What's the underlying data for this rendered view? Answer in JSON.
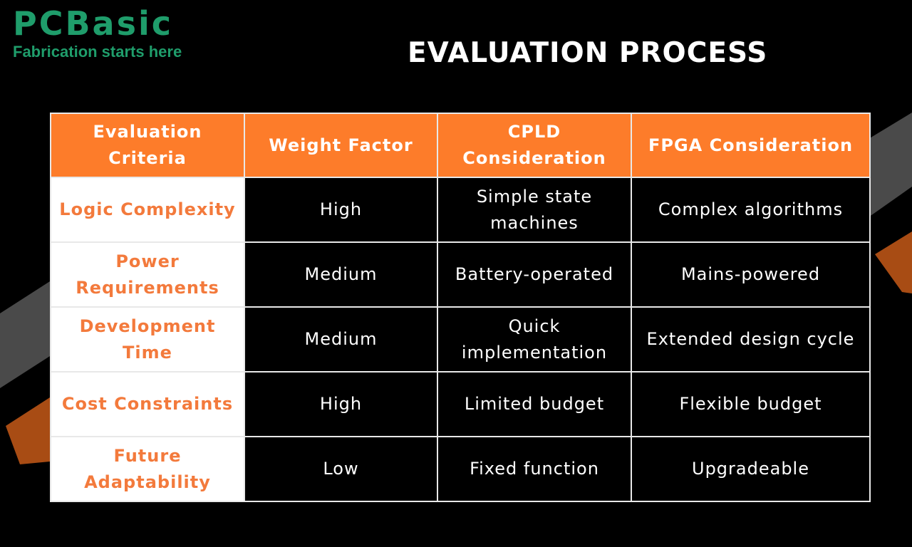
{
  "brand": {
    "name": "PCBasic",
    "tagline": "Fabrication starts here",
    "color": "#1f9d6b"
  },
  "title": "EVALUATION PROCESS",
  "colors": {
    "accent": "#fd7c2a",
    "criteria_text": "#f37a3c",
    "stripe_gray": "#4a4a4a",
    "stripe_orange": "#a84c14"
  },
  "table": {
    "headers": [
      "Evaluation Criteria",
      "Weight Factor",
      "CPLD Consideration",
      "FPGA Consideration"
    ],
    "rows": [
      {
        "criteria": "Logic Complexity",
        "weight": "High",
        "cpld": "Simple state machines",
        "fpga": "Complex algorithms"
      },
      {
        "criteria": "Power Requirements",
        "weight": "Medium",
        "cpld": "Battery-operated",
        "fpga": "Mains-powered"
      },
      {
        "criteria": "Development Time",
        "weight": "Medium",
        "cpld": "Quick implementation",
        "fpga": "Extended design cycle"
      },
      {
        "criteria": "Cost Constraints",
        "weight": "High",
        "cpld": "Limited budget",
        "fpga": "Flexible budget"
      },
      {
        "criteria": "Future Adaptability",
        "weight": "Low",
        "cpld": "Fixed function",
        "fpga": "Upgradeable"
      }
    ]
  }
}
